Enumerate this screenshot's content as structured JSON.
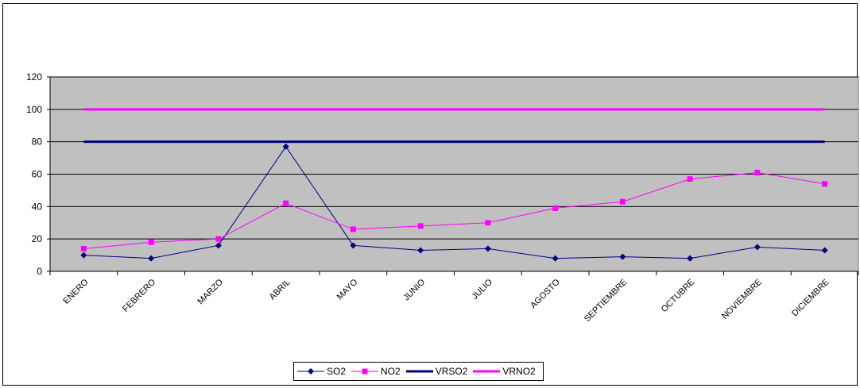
{
  "chart_data": {
    "type": "line",
    "title": "",
    "xlabel": "",
    "ylabel": "",
    "ylim": [
      0,
      120
    ],
    "yticks": [
      0,
      20,
      40,
      60,
      80,
      100,
      120
    ],
    "grid": true,
    "legend_position": "bottom",
    "plot_background": "#c0c0c0",
    "categories": [
      "ENERO",
      "FEBRERO",
      "MARZO",
      "ABRIL",
      "MAYO",
      "JUNIO",
      "JULIO",
      "AGOSTO",
      "SEPTIEMBRE",
      "OCTUBRE",
      "NOVIEMBRE",
      "DICIEMBRE"
    ],
    "series": [
      {
        "name": "SO2",
        "color": "#000080",
        "marker": "diamond",
        "width": 1,
        "values": [
          10,
          8,
          16,
          77,
          16,
          13,
          14,
          8,
          9,
          8,
          15,
          13
        ]
      },
      {
        "name": "NO2",
        "color": "#ff00ff",
        "marker": "square",
        "width": 1,
        "values": [
          14,
          18,
          20,
          42,
          26,
          28,
          30,
          39,
          43,
          57,
          61,
          54
        ]
      },
      {
        "name": "VRSO2",
        "color": "#000080",
        "marker": "none",
        "width": 3,
        "values": [
          80,
          80,
          80,
          80,
          80,
          80,
          80,
          80,
          80,
          80,
          80,
          80
        ]
      },
      {
        "name": "VRNO2",
        "color": "#ff00ff",
        "marker": "none",
        "width": 3,
        "values": [
          100,
          100,
          100,
          100,
          100,
          100,
          100,
          100,
          100,
          100,
          100,
          100
        ]
      }
    ]
  }
}
